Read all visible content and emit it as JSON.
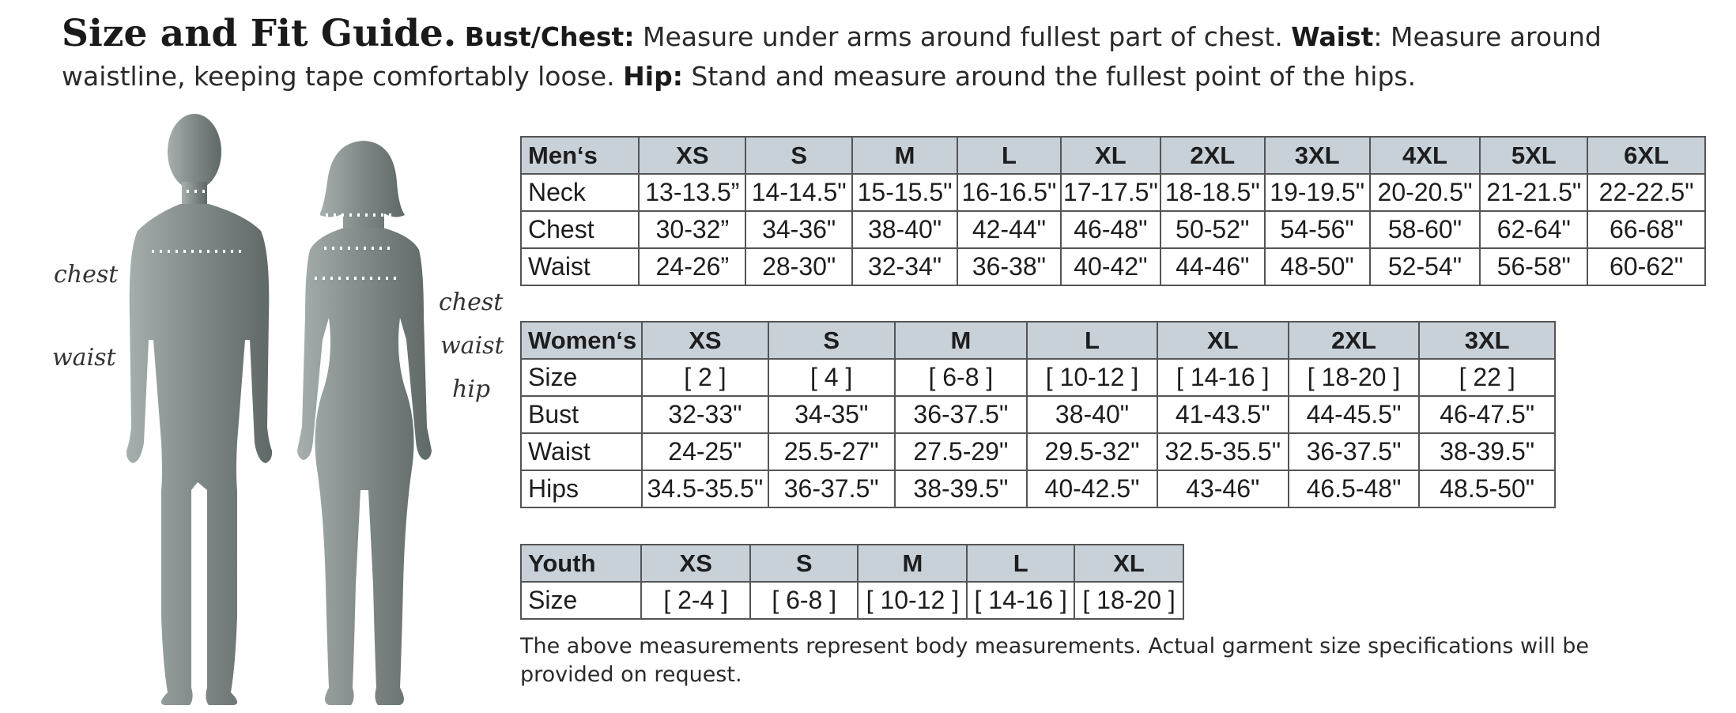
{
  "intro": {
    "title": "Size and Fit Guide.",
    "bust_label": "Bust/Chest:",
    "bust_text": " Measure under arms around fullest part of chest. ",
    "waist_label": "Waist",
    "waist_text": ": Measure around waistline, keeping tape comfortably loose. ",
    "hip_label": "Hip:",
    "hip_text": " Stand and measure around the fullest point of the hips."
  },
  "figure_labels": {
    "men_chest": "chest",
    "men_waist": "waist",
    "women_chest": "chest",
    "women_waist": "waist",
    "women_hip": "hip"
  },
  "colors": {
    "table_header_bg": "#c8d0d8",
    "silhouette": "#7c8584",
    "border": "#555555"
  },
  "mens": {
    "header": [
      "Men‘s",
      "XS",
      "S",
      "M",
      "L",
      "XL",
      "2XL",
      "3XL",
      "4XL",
      "5XL",
      "6XL"
    ],
    "rows": [
      [
        "Neck",
        "13-13.5”",
        "14-14.5\"",
        "15-15.5\"",
        "16-16.5\"",
        "17-17.5\"",
        "18-18.5\"",
        "19-19.5\"",
        "20-20.5\"",
        "21-21.5\"",
        "22-22.5\""
      ],
      [
        "Chest",
        "30-32”",
        "34-36\"",
        "38-40\"",
        "42-44\"",
        "46-48\"",
        "50-52\"",
        "54-56\"",
        "58-60\"",
        "62-64\"",
        "66-68\""
      ],
      [
        "Waist",
        "24-26”",
        "28-30\"",
        "32-34\"",
        "36-38\"",
        "40-42\"",
        "44-46\"",
        "48-50\"",
        "52-54\"",
        "56-58\"",
        "60-62\""
      ]
    ]
  },
  "womens": {
    "header": [
      "Women‘s",
      "XS",
      "S",
      "M",
      "L",
      "XL",
      "2XL",
      "3XL"
    ],
    "rows": [
      [
        "Size",
        "[ 2 ]",
        "[ 4 ]",
        "[ 6-8 ]",
        "[ 10-12 ]",
        "[ 14-16 ]",
        "[ 18-20 ]",
        "[ 22 ]"
      ],
      [
        "Bust",
        "32-33\"",
        "34-35\"",
        "36-37.5\"",
        "38-40\"",
        "41-43.5\"",
        "44-45.5\"",
        "46-47.5\""
      ],
      [
        "Waist",
        "24-25\"",
        "25.5-27\"",
        "27.5-29\"",
        "29.5-32\"",
        "32.5-35.5\"",
        "36-37.5\"",
        "38-39.5\""
      ],
      [
        "Hips",
        "34.5-35.5\"",
        "36-37.5\"",
        "38-39.5\"",
        "40-42.5\"",
        "43-46\"",
        "46.5-48\"",
        "48.5-50\""
      ]
    ]
  },
  "youth": {
    "header": [
      "Youth",
      "XS",
      "S",
      "M",
      "L",
      "XL"
    ],
    "rows": [
      [
        "Size",
        "[ 2-4 ]",
        "[ 6-8 ]",
        "[ 10-12 ]",
        "[ 14-16 ]",
        "[ 18-20 ]"
      ]
    ]
  },
  "note": "The above measurements represent body measurements. Actual garment size specifications will be provided on request."
}
